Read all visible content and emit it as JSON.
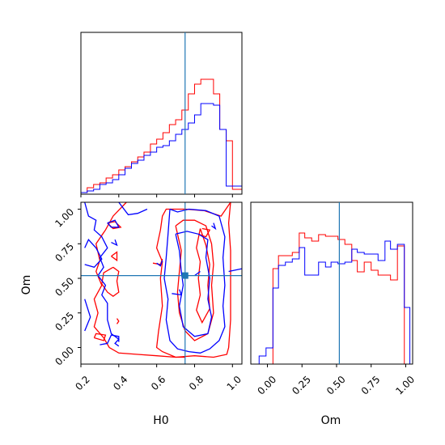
{
  "chart_data": {
    "type": "corner",
    "series_colors": {
      "red": "#ff0000",
      "blue": "#0000ff",
      "truth": "#1f77b4"
    },
    "truth": {
      "H0": 0.75,
      "Om": 0.52
    },
    "panels": [
      {
        "id": "hist-H0",
        "type": "histogram",
        "xlim": [
          0.2,
          1.05
        ],
        "ylim": [
          0,
          1.0
        ],
        "bin_edges": [
          0.2,
          0.233,
          0.267,
          0.3,
          0.333,
          0.367,
          0.4,
          0.433,
          0.467,
          0.5,
          0.533,
          0.567,
          0.6,
          0.633,
          0.667,
          0.7,
          0.733,
          0.767,
          0.8,
          0.833,
          0.867,
          0.9,
          0.933,
          0.967,
          1.0,
          1.05
        ],
        "series": [
          {
            "name": "",
            "color": "#ff0000",
            "values": [
              0.01,
              0.04,
              0.06,
              0.07,
              0.1,
              0.12,
              0.15,
              0.17,
              0.2,
              0.23,
              0.26,
              0.31,
              0.34,
              0.38,
              0.43,
              0.46,
              0.52,
              0.62,
              0.68,
              0.71,
              0.71,
              0.62,
              0.4,
              0.33,
              0.03
            ]
          },
          {
            "name": "",
            "color": "#0000ff",
            "values": [
              0.01,
              0.02,
              0.03,
              0.06,
              0.07,
              0.09,
              0.12,
              0.16,
              0.19,
              0.21,
              0.24,
              0.26,
              0.29,
              0.3,
              0.33,
              0.37,
              0.4,
              0.44,
              0.49,
              0.56,
              0.56,
              0.55,
              0.4,
              0.05,
              0.05
            ]
          }
        ]
      },
      {
        "id": "contour-H0-Om",
        "type": "contour",
        "xlabel": "H0",
        "ylabel": "Om",
        "xlim": [
          0.2,
          1.05
        ],
        "ylim": [
          -0.12,
          1.05
        ],
        "xticks": [
          "0.2",
          "0.4",
          "0.6",
          "0.8",
          "1.0"
        ],
        "yticks": [
          "0.00",
          "0.25",
          "0.50",
          "0.75",
          "1.00"
        ]
      },
      {
        "id": "hist-Om",
        "type": "histogram",
        "xlabel": "Om",
        "xlim": [
          -0.12,
          1.05
        ],
        "ylim": [
          0,
          1.0
        ],
        "xticks": [
          "0.00",
          "0.25",
          "0.50",
          "0.75",
          "1.00"
        ],
        "bin_edges": [
          -0.06,
          -0.01,
          0.04,
          0.08,
          0.13,
          0.18,
          0.23,
          0.27,
          0.32,
          0.37,
          0.42,
          0.46,
          0.51,
          0.56,
          0.61,
          0.65,
          0.7,
          0.75,
          0.8,
          0.85,
          0.89,
          0.94,
          0.99,
          1.03
        ],
        "series": [
          {
            "name": "",
            "color": "#ff0000",
            "values": [
              0,
              0,
              0.59,
              0.67,
              0.67,
              0.69,
              0.81,
              0.78,
              0.76,
              0.8,
              0.79,
              0.79,
              0.77,
              0.74,
              0.64,
              0.57,
              0.63,
              0.58,
              0.55,
              0.55,
              0.52,
              0.73,
              0
            ]
          },
          {
            "name": "",
            "color": "#0000ff",
            "values": [
              0.05,
              0.1,
              0.47,
              0.61,
              0.63,
              0.65,
              0.72,
              0.55,
              0.55,
              0.63,
              0.6,
              0.63,
              0.62,
              0.63,
              0.71,
              0.69,
              0.68,
              0.68,
              0.64,
              0.76,
              0.71,
              0.74,
              0.35
            ]
          }
        ]
      }
    ]
  }
}
